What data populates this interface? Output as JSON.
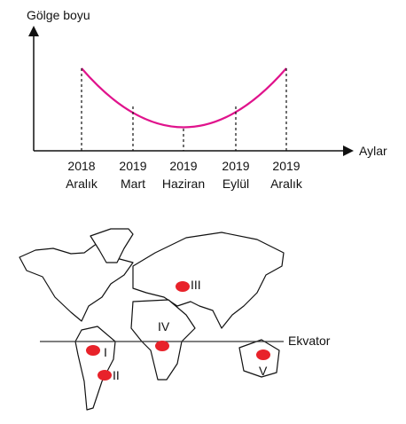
{
  "graph": {
    "y_label": "Gölge boyu",
    "x_label": "Aylar",
    "points": [
      {
        "year": "2018",
        "month": "Aralık"
      },
      {
        "year": "2019",
        "month": "Mart"
      },
      {
        "year": "2019",
        "month": "Haziran"
      },
      {
        "year": "2019",
        "month": "Eylül"
      },
      {
        "year": "2019",
        "month": "Aralık"
      }
    ]
  },
  "map": {
    "equator_label": "Ekvator",
    "markers": [
      {
        "label": "I"
      },
      {
        "label": "II"
      },
      {
        "label": "III"
      },
      {
        "label": "IV"
      },
      {
        "label": "V"
      }
    ]
  }
}
